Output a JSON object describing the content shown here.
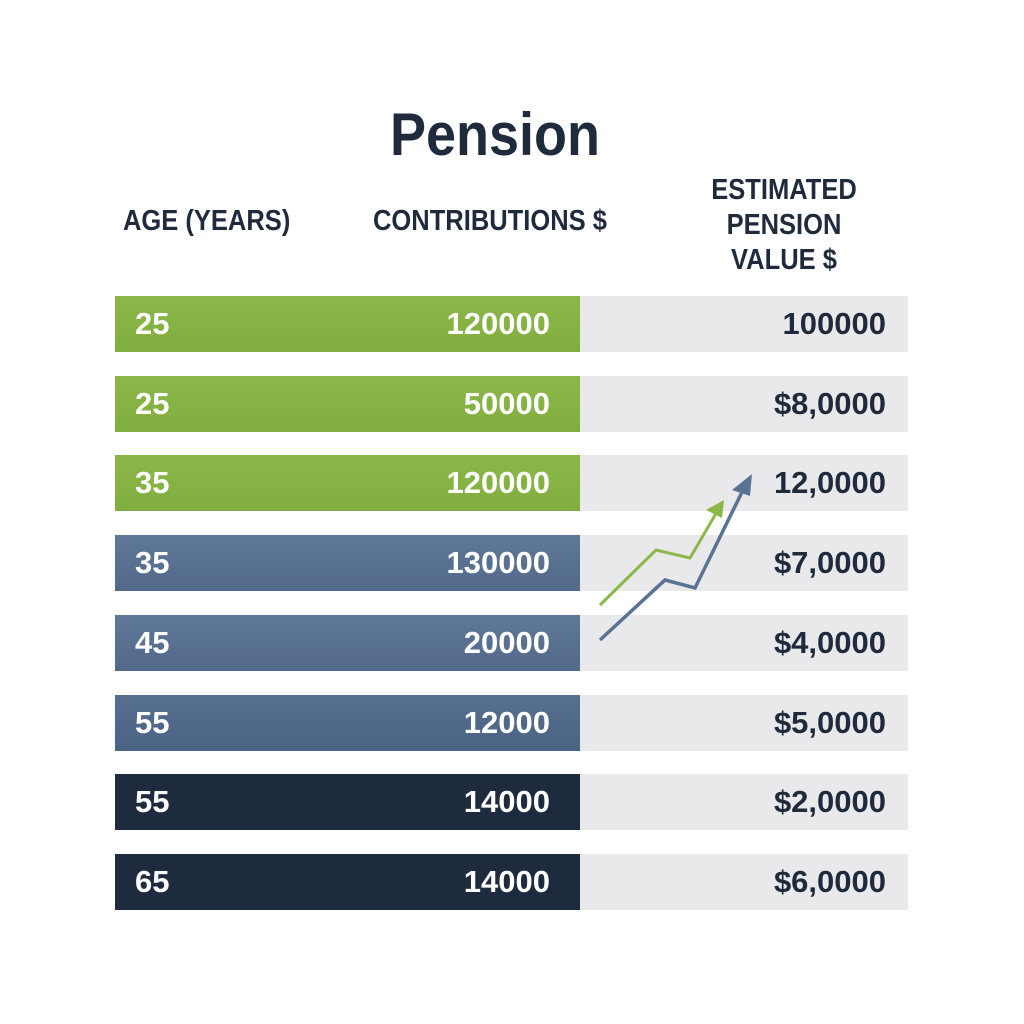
{
  "title": "Pension",
  "table": {
    "headers": [
      "AGE (YEARS)",
      "CONTRIBUTIONS $",
      "ESTIMATED PENSION VALUE $"
    ],
    "rows": [
      [
        "25",
        "120000",
        "100000"
      ],
      [
        "25",
        "50000",
        "$8,0000"
      ],
      [
        "35",
        "120000",
        "12,0000"
      ],
      [
        "35",
        "130000",
        "$7,0000"
      ],
      [
        "45",
        "20000",
        "$4,0000"
      ],
      [
        "55",
        "12000",
        "$5,0000"
      ],
      [
        "55",
        "14000",
        "$2,0000"
      ],
      [
        "65",
        "14000",
        "$6,0000"
      ]
    ]
  }
}
